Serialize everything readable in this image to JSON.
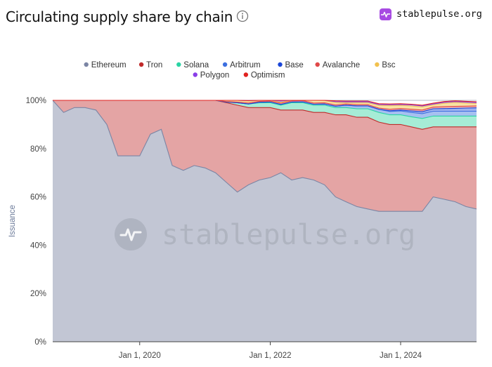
{
  "header": {
    "title": "Circulating supply share by chain",
    "info_icon": "info-circle-icon"
  },
  "brand": {
    "name": "stablepulse.org",
    "logo_icon": "pulse-logo-icon",
    "accent": "#a74ae2"
  },
  "watermark": {
    "text": "stablepulse.org",
    "icon": "pulse-logo-icon"
  },
  "chart_data": {
    "type": "area",
    "stacked": true,
    "normalized": true,
    "title": "Circulating supply share by chain",
    "ylabel": "Issuance",
    "xlabel": "",
    "ylim": [
      0,
      100
    ],
    "yticks": [
      "0%",
      "20%",
      "40%",
      "60%",
      "80%",
      "100%"
    ],
    "xticks": [
      {
        "date": "2020-01-01",
        "label": "Jan 1, 2020"
      },
      {
        "date": "2022-01-01",
        "label": "Jan 1, 2022"
      },
      {
        "date": "2024-01-01",
        "label": "Jan 1, 2024"
      }
    ],
    "grid": true,
    "legend_position": "top",
    "x": [
      "2018-09-01",
      "2018-11-01",
      "2018-12-01",
      "2019-01-01",
      "2019-03-01",
      "2019-05-01",
      "2019-07-01",
      "2019-09-01",
      "2019-11-01",
      "2020-01-01",
      "2020-03-01",
      "2020-05-01",
      "2020-07-01",
      "2020-09-01",
      "2020-11-01",
      "2021-01-01",
      "2021-03-01",
      "2021-05-01",
      "2021-07-01",
      "2021-09-01",
      "2021-11-01",
      "2022-01-01",
      "2022-03-01",
      "2022-05-01",
      "2022-07-01",
      "2022-09-01",
      "2022-11-01",
      "2023-01-01",
      "2023-03-01",
      "2023-05-01",
      "2023-07-01",
      "2023-09-01",
      "2023-11-01",
      "2024-01-01",
      "2024-03-01",
      "2024-05-01",
      "2024-07-01",
      "2024-09-01",
      "2024-11-01",
      "2025-01-01",
      "2025-03-01"
    ],
    "series": [
      {
        "name": "Ethereum",
        "color": "#7b85a4",
        "fill": "#c2c6d4",
        "values": [
          100,
          95,
          96,
          97,
          97,
          96,
          90,
          77,
          77,
          77,
          86,
          88,
          73,
          71,
          73,
          72,
          70,
          66,
          62,
          65,
          67,
          68,
          70,
          67,
          68,
          67,
          65,
          60,
          58,
          56,
          55,
          54,
          54,
          54,
          54,
          54,
          60,
          59,
          58,
          56,
          55
        ]
      },
      {
        "name": "Tron",
        "color": "#c02a2a",
        "fill": "#e4a4a4",
        "values": [
          0,
          5,
          4,
          3,
          3,
          4,
          10,
          23,
          23,
          23,
          14,
          12,
          27,
          29,
          27,
          28,
          30,
          33,
          36,
          32,
          30,
          29,
          26,
          29,
          28,
          28,
          30,
          34,
          36,
          37,
          38,
          37,
          36,
          36,
          35,
          34,
          29,
          30,
          31,
          33,
          34
        ]
      },
      {
        "name": "Solana",
        "color": "#2ad4a4",
        "fill": "#a6ecd6",
        "values": [
          0,
          0,
          0,
          0,
          0,
          0,
          0,
          0,
          0,
          0,
          0,
          0,
          0,
          0,
          0,
          0,
          0,
          0.3,
          1,
          1.5,
          2,
          2,
          2,
          3,
          3,
          3,
          3,
          3,
          3,
          3.5,
          3.5,
          4,
          4,
          4,
          4.2,
          4.5,
          4.5,
          4.5,
          4.5,
          4.5,
          4.5
        ]
      },
      {
        "name": "Arbitrum",
        "color": "#3c6fe0",
        "fill": "#a7c0f0",
        "values": [
          0,
          0,
          0,
          0,
          0,
          0,
          0,
          0,
          0,
          0,
          0,
          0,
          0,
          0,
          0,
          0,
          0,
          0,
          0,
          0,
          0.2,
          0.3,
          0.3,
          0.3,
          0.4,
          0.4,
          0.5,
          0.6,
          1,
          1.2,
          1.2,
          1.3,
          1.4,
          1.6,
          1.8,
          2,
          2,
          2,
          2,
          2,
          2
        ]
      },
      {
        "name": "Base",
        "color": "#1a46d8",
        "fill": "#9fb3ee",
        "values": [
          0,
          0,
          0,
          0,
          0,
          0,
          0,
          0,
          0,
          0,
          0,
          0,
          0,
          0,
          0,
          0,
          0,
          0,
          0,
          0,
          0,
          0,
          0,
          0,
          0,
          0,
          0,
          0,
          0,
          0,
          0,
          0,
          0.3,
          0.4,
          0.6,
          0.8,
          1,
          1.1,
          1.2,
          1.3,
          1.4
        ]
      },
      {
        "name": "Avalanche",
        "color": "#e04848",
        "fill": "#f3b0ae",
        "values": [
          0,
          0,
          0,
          0,
          0,
          0,
          0,
          0,
          0,
          0,
          0,
          0,
          0,
          0,
          0,
          0,
          0,
          0.2,
          0.3,
          0.4,
          0.4,
          0.4,
          0.5,
          0.5,
          0.5,
          0.5,
          0.5,
          0.5,
          0.5,
          0.5,
          0.5,
          0.5,
          0.6,
          0.6,
          0.7,
          0.7,
          0.7,
          0.8,
          0.8,
          0.8,
          0.8
        ]
      },
      {
        "name": "Bsc",
        "color": "#f2c14e",
        "fill": "#f8e2a4",
        "values": [
          0,
          0,
          0,
          0,
          0,
          0,
          0,
          0,
          0,
          0,
          0,
          0,
          0,
          0,
          0,
          0,
          0,
          0.5,
          0.7,
          0.8,
          0.6,
          0.5,
          0.4,
          0.2,
          0.1,
          1.1,
          0.9,
          1.0,
          0.5,
          0.8,
          0.8,
          1.1,
          1.5,
          1.3,
          1.4,
          1.3,
          0.9,
          1.4,
          1.6,
          1.3,
          1.0
        ]
      },
      {
        "name": "Polygon",
        "color": "#8a3ee8",
        "fill": "#c9b3f2",
        "values": [
          0,
          0,
          0,
          0,
          0,
          0,
          0,
          0,
          0,
          0,
          0,
          0,
          0,
          0,
          0,
          0,
          0,
          0,
          0,
          0.2,
          0.5,
          0.5,
          0.5,
          0.5,
          0.5,
          0.5,
          0.4,
          0.4,
          0.4,
          0.4,
          0.4,
          0.4,
          0.4,
          0.4,
          0.4,
          0.4,
          0.4,
          0.4,
          0.4,
          0.4,
          0.4
        ]
      },
      {
        "name": "Optimism",
        "color": "#e0221f",
        "fill": "#f2a09c",
        "values": [
          0,
          0,
          0,
          0,
          0,
          0,
          0,
          0,
          0,
          0,
          0,
          0,
          0,
          0,
          0,
          0,
          0,
          0,
          0,
          0,
          0,
          0.3,
          0.3,
          0.3,
          0.3,
          0.3,
          0.3,
          0.3,
          0.3,
          0.3,
          0.3,
          0.3,
          0.3,
          0.3,
          0.3,
          0.3,
          0.3,
          0.3,
          0.3,
          0.3,
          0.3
        ]
      }
    ]
  }
}
